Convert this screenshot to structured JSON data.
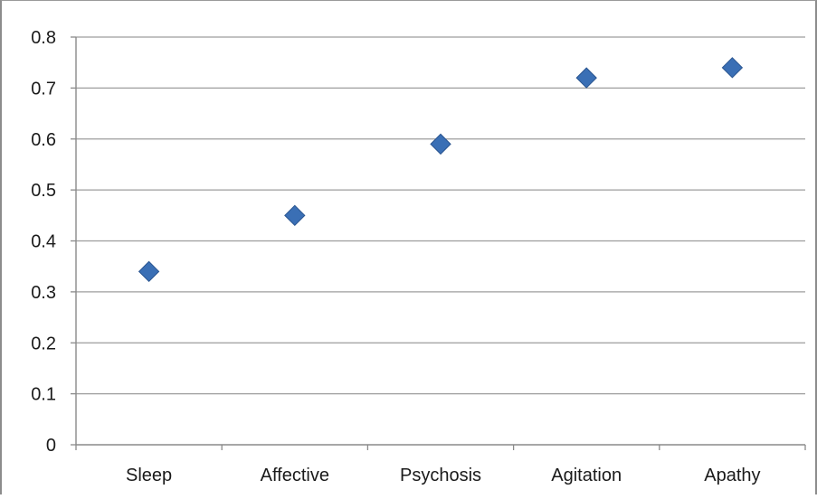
{
  "chart_data": {
    "type": "scatter",
    "title": "",
    "xlabel": "",
    "ylabel": "",
    "categories": [
      "Sleep",
      "Affective",
      "Psychosis",
      "Agitation",
      "Apathy"
    ],
    "values": [
      0.34,
      0.45,
      0.59,
      0.72,
      0.74
    ],
    "ylim": [
      0,
      0.8
    ],
    "yticks": [
      "0",
      "0.1",
      "0.2",
      "0.3",
      "0.4",
      "0.5",
      "0.6",
      "0.7",
      "0.8"
    ],
    "grid": true,
    "legend": false,
    "marker": "diamond",
    "colors": {
      "marker": "#3a6fb5",
      "marker_edge": "#2a5590",
      "grid": "#9d9d9d",
      "axis": "#8a8a8a"
    }
  }
}
